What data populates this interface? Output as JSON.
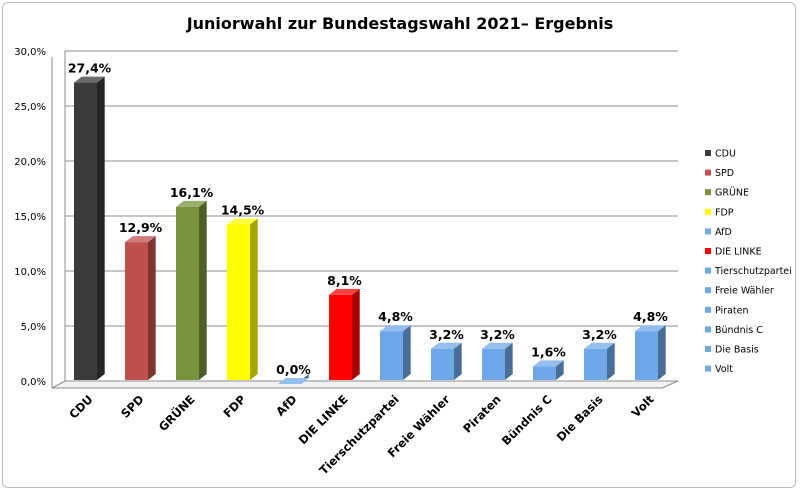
{
  "chart_data": {
    "type": "bar",
    "title": "Juniorwahl zur Bundestagswahl 2021– Ergebnis",
    "categories": [
      "CDU",
      "SPD",
      "GRÜNE",
      "FDP",
      "AfD",
      "DIE LINKE",
      "Tierschutzpartei",
      "Freie Wähler",
      "Piraten",
      "Bündnis C",
      "Die Basis",
      "Volt"
    ],
    "values": [
      27.4,
      12.9,
      16.1,
      14.5,
      0.0,
      8.1,
      4.8,
      3.2,
      3.2,
      1.6,
      3.2,
      4.8
    ],
    "value_labels": [
      "27,4%",
      "12,9%",
      "16,1%",
      "14,5%",
      "0,0%",
      "8,1%",
      "4,8%",
      "3,2%",
      "3,2%",
      "1,6%",
      "3,2%",
      "4,8%"
    ],
    "colors": [
      "#3b3b3b",
      "#c0504d",
      "#77933c",
      "#ffff00",
      "#6fa8e8",
      "#ff0000",
      "#6fa8e8",
      "#6fa8e8",
      "#6fa8e8",
      "#6fa8e8",
      "#6fa8e8",
      "#6fa8e8"
    ],
    "yticks": [
      "0,0%",
      "5,0%",
      "10,0%",
      "15,0%",
      "20,0%",
      "25,0%",
      "30,0%"
    ],
    "ylim": [
      0,
      30
    ],
    "grid": true,
    "legend_position": "right",
    "bar_style": "3d"
  }
}
